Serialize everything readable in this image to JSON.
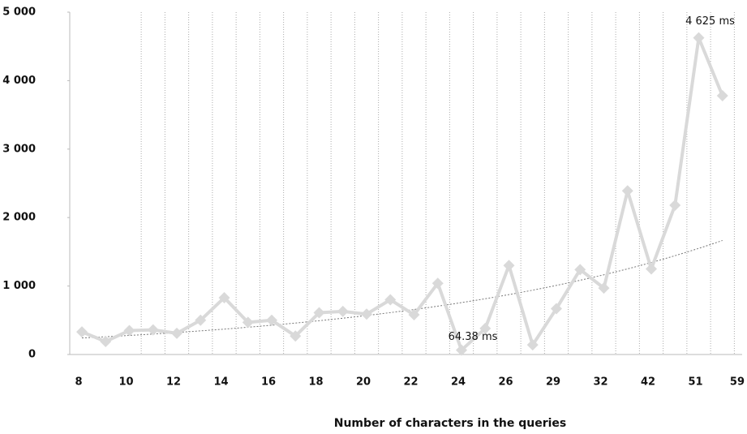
{
  "chart_data": {
    "type": "line",
    "x_label": "Number of characters in the queries",
    "categories": [
      "8",
      null,
      "10",
      null,
      "12",
      null,
      "14",
      null,
      "16",
      null,
      "18",
      null,
      "20",
      null,
      "22",
      null,
      "24",
      null,
      "26",
      null,
      "29",
      null,
      "32",
      null,
      "42",
      null,
      "51",
      null,
      "59"
    ],
    "series": [
      {
        "color": "#d9d9d9",
        "values": [
          330,
          190,
          350,
          360,
          310,
          500,
          830,
          470,
          500,
          270,
          610,
          630,
          590,
          800,
          580,
          1040,
          64.38,
          380,
          1300,
          140,
          670,
          1240,
          970,
          2390,
          1250,
          2180,
          4625,
          3780,
          null
        ],
        "value_labels": [
          null,
          null,
          null,
          null,
          null,
          null,
          null,
          null,
          null,
          null,
          null,
          null,
          null,
          null,
          null,
          null,
          "64.38 ms",
          null,
          null,
          null,
          null,
          null,
          null,
          null,
          null,
          null,
          "4 625 ms",
          null,
          null
        ]
      }
    ],
    "ylim": [
      0,
      5000
    ],
    "yticks": [
      0,
      {
        "value": 1000,
        "label": "1 000"
      },
      {
        "value": 2000,
        "label": "2 000"
      },
      {
        "value": 3000,
        "label": "3 000"
      },
      {
        "value": 4000,
        "label": "4 000"
      },
      {
        "value": 5000,
        "label": "5 000"
      }
    ],
    "xgrid": true,
    "trendline": "exponential",
    "trend_color": "#777777"
  }
}
